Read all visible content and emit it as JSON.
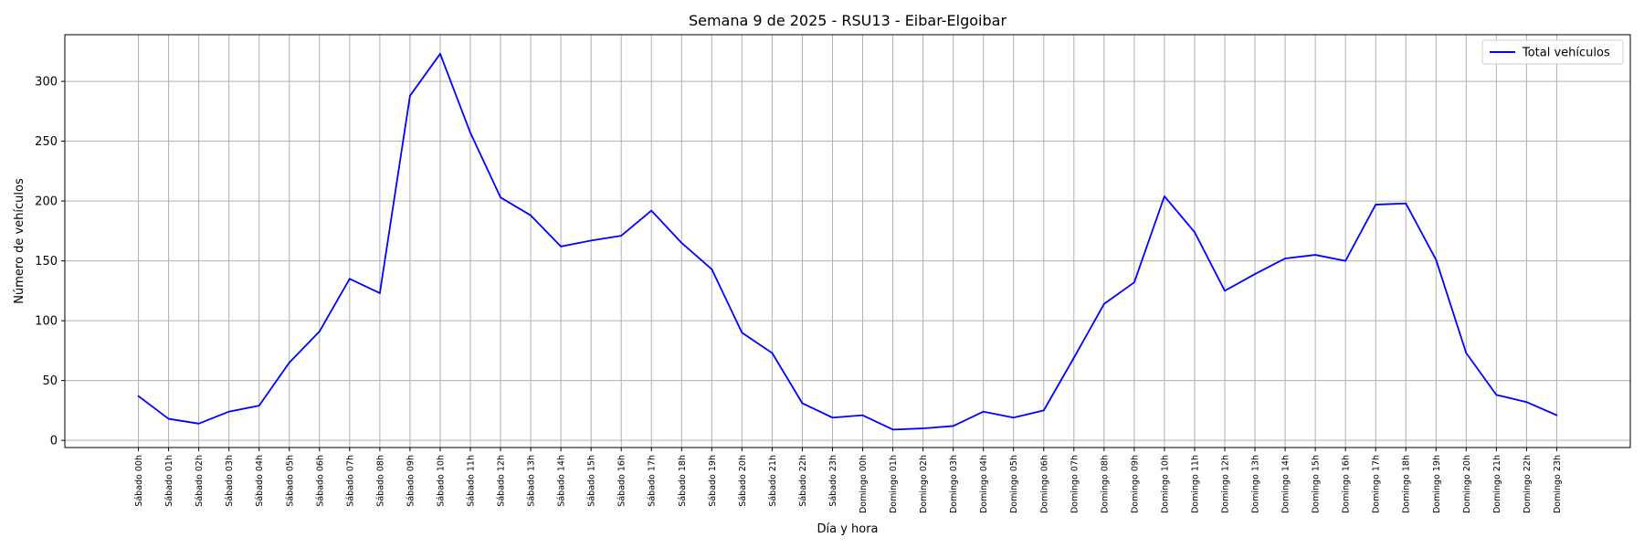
{
  "chart_data": {
    "type": "line",
    "title": "Semana 9 de 2025 - RSU13 - Eibar-Elgoibar",
    "xlabel": "Día y hora",
    "ylabel": "Número de vehículos",
    "ylim": [
      -6,
      339
    ],
    "yticks": [
      0,
      50,
      100,
      150,
      200,
      250,
      300
    ],
    "grid": true,
    "legend_position": "top-right",
    "line_color": "#0000ff",
    "categories": [
      "Sábado 00h",
      "Sábado 01h",
      "Sábado 02h",
      "Sábado 03h",
      "Sábado 04h",
      "Sábado 05h",
      "Sábado 06h",
      "Sábado 07h",
      "Sábado 08h",
      "Sábado 09h",
      "Sábado 10h",
      "Sábado 11h",
      "Sábado 12h",
      "Sábado 13h",
      "Sábado 14h",
      "Sábado 15h",
      "Sábado 16h",
      "Sábado 17h",
      "Sábado 18h",
      "Sábado 19h",
      "Sábado 20h",
      "Sábado 21h",
      "Sábado 22h",
      "Sábado 23h",
      "Domingo 00h",
      "Domingo 01h",
      "Domingo 02h",
      "Domingo 03h",
      "Domingo 04h",
      "Domingo 05h",
      "Domingo 06h",
      "Domingo 07h",
      "Domingo 08h",
      "Domingo 09h",
      "Domingo 10h",
      "Domingo 11h",
      "Domingo 12h",
      "Domingo 13h",
      "Domingo 14h",
      "Domingo 15h",
      "Domingo 16h",
      "Domingo 17h",
      "Domingo 18h",
      "Domingo 19h",
      "Domingo 20h",
      "Domingo 21h",
      "Domingo 22h",
      "Domingo 23h"
    ],
    "series": [
      {
        "name": "Total vehículos",
        "values": [
          37,
          18,
          14,
          24,
          29,
          65,
          91,
          135,
          123,
          288,
          323,
          257,
          203,
          188,
          162,
          167,
          171,
          192,
          165,
          143,
          90,
          73,
          31,
          19,
          21,
          9,
          10,
          12,
          24,
          19,
          25,
          69,
          114,
          132,
          204,
          174,
          125,
          139,
          152,
          155,
          150,
          197,
          198,
          151,
          73,
          38,
          32,
          21
        ]
      }
    ]
  }
}
